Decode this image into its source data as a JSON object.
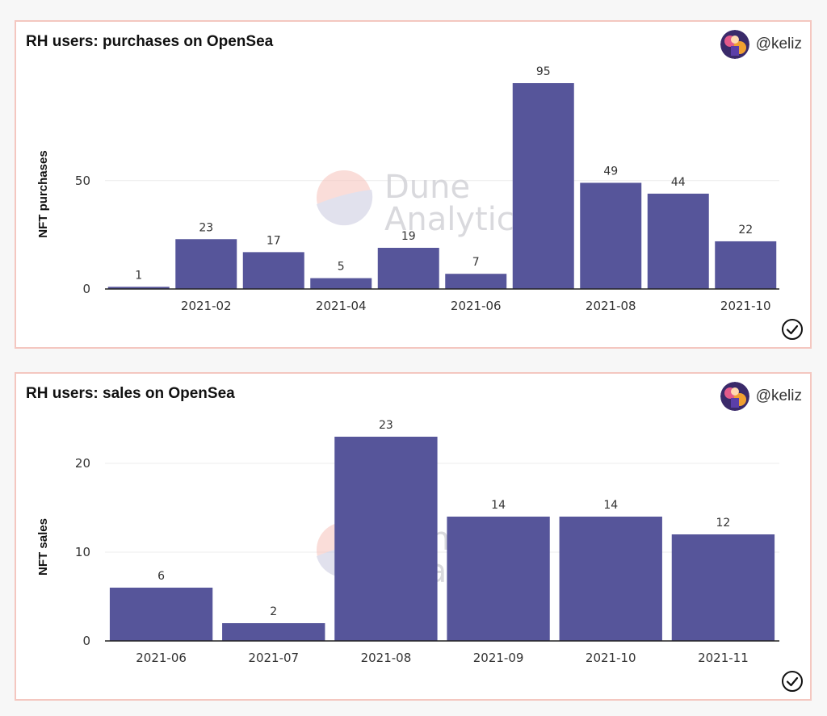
{
  "watermark": {
    "line1": "Dune",
    "line2": "Analytics"
  },
  "colors": {
    "bar": "#56559a",
    "border": "#f4c7c0",
    "wm_top": "#f6c3bb",
    "wm_bottom": "#c9c9e0"
  },
  "charts": [
    {
      "title": "RH users: purchases on OpenSea",
      "author": "@keliz",
      "chart_data": {
        "type": "bar",
        "title": "RH users: purchases on OpenSea",
        "ylabel": "NFT purchases",
        "xlabel": "",
        "categories": [
          "2021-01",
          "2021-02",
          "2021-03",
          "2021-04",
          "2021-05",
          "2021-06",
          "2021-07",
          "2021-08",
          "2021-09",
          "2021-10"
        ],
        "values": [
          1,
          23,
          17,
          5,
          19,
          7,
          95,
          49,
          44,
          22
        ],
        "x_tick_labels": [
          "2021-02",
          "2021-04",
          "2021-06",
          "2021-08",
          "2021-10"
        ],
        "y_ticks": [
          0,
          50
        ],
        "ylim": [
          0,
          95
        ]
      }
    },
    {
      "title": "RH users: sales on OpenSea",
      "author": "@keliz",
      "chart_data": {
        "type": "bar",
        "title": "RH users: sales on OpenSea",
        "ylabel": "NFT sales",
        "xlabel": "",
        "categories": [
          "2021-06",
          "2021-07",
          "2021-08",
          "2021-09",
          "2021-10",
          "2021-11"
        ],
        "values": [
          6,
          2,
          23,
          14,
          14,
          12
        ],
        "x_tick_labels": [
          "2021-06",
          "2021-07",
          "2021-08",
          "2021-09",
          "2021-10",
          "2021-11"
        ],
        "y_ticks": [
          0,
          10,
          20
        ],
        "ylim": [
          0,
          23
        ]
      }
    }
  ]
}
